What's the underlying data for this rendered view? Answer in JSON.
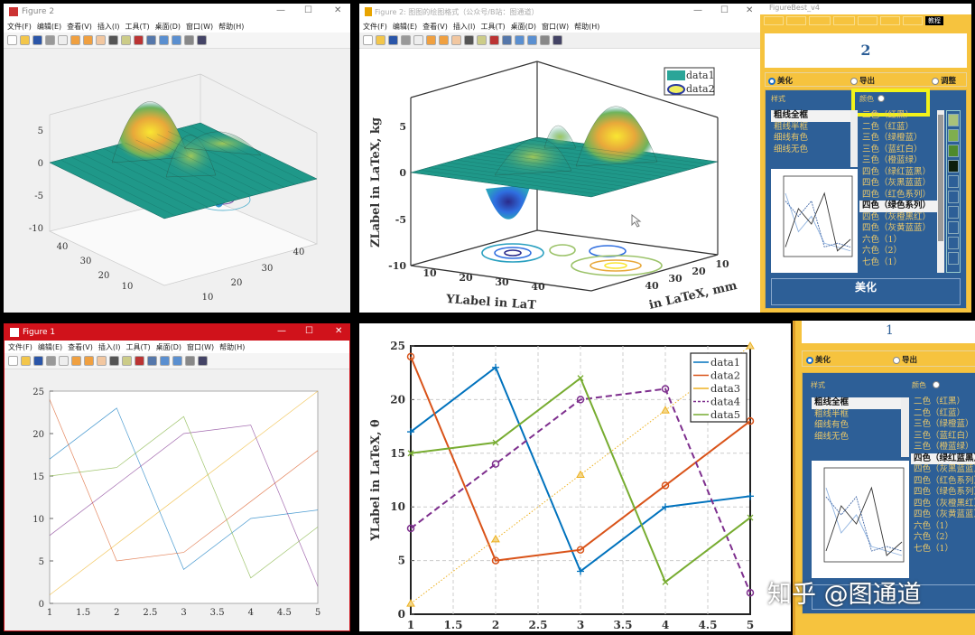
{
  "menu": [
    "文件(F)",
    "编辑(E)",
    "查看(V)",
    "插入(I)",
    "工具(T)",
    "桌面(D)",
    "窗口(W)",
    "帮助(H)"
  ],
  "windows": {
    "fig2_plain": {
      "title": "Figure 2"
    },
    "fig2_styled": {
      "title": "Figure 2: 图图的绘图格式（公众号/B站：图通道）"
    },
    "fig1_plain": {
      "title": "Figure 1"
    }
  },
  "figurebest": {
    "title": "FigureBest_v4",
    "tutorial_button": "教程",
    "figure_number_top": "2",
    "figure_number_bottom": "1",
    "modes": [
      "美化",
      "导出",
      "调整"
    ],
    "selected_mode": "美化",
    "style_label": "样式",
    "color_label": "颜色",
    "styles": [
      "粗线全框",
      "粗线半框",
      "细线有色",
      "细线无色"
    ],
    "selected_style": "粗线全框",
    "color_schemes": [
      "二色（红黑）",
      "二色（红蓝）",
      "三色（绿橙蓝）",
      "三色（蓝红白）",
      "三色（橙蓝绿）",
      "四色（绿红蓝黑）",
      "四色（灰黑蓝蓝）",
      "四色（红色系列）",
      "四色（绿色系列）",
      "四色（灰橙黑红）",
      "四色（灰黄蓝蓝）",
      "六色（1）",
      "六色（2）",
      "七色（1）"
    ],
    "selected_color_top": "四色（绿色系列）",
    "selected_color_bottom": "四色（绿红蓝黑）",
    "swatches_top": [
      "#a9c27a",
      "#7fae4e",
      "#4e8a2c",
      "#0d1f0d"
    ],
    "beautify_button": "美化",
    "highlight_color": "#f2f21a"
  },
  "watermark": "知乎 @图通道",
  "colors": {
    "blue": "#0072BD",
    "orange": "#D95319",
    "yellow": "#EDB120",
    "purple": "#7E2F8E",
    "green": "#77AC30",
    "panel_blue": "#2d5f97",
    "panel_yellow": "#f6c33e",
    "fig1_title_red": "#d0121b"
  },
  "chart_data": [
    {
      "id": "styled_line",
      "type": "line",
      "x": [
        1,
        2,
        3,
        4,
        5
      ],
      "series": [
        {
          "name": "data1",
          "values": [
            17,
            23,
            4,
            10,
            11
          ],
          "marker": "+",
          "dash": "solid"
        },
        {
          "name": "data2",
          "values": [
            24,
            5,
            6,
            12,
            18
          ],
          "marker": "o",
          "dash": "solid"
        },
        {
          "name": "data3",
          "values": [
            1,
            7,
            13,
            19,
            25
          ],
          "marker": "triangle",
          "dash": "dotted"
        },
        {
          "name": "data4",
          "values": [
            8,
            14,
            20,
            21,
            2
          ],
          "marker": "o",
          "dash": "dashed"
        },
        {
          "name": "data5",
          "values": [
            15,
            16,
            22,
            3,
            9
          ],
          "marker": "x",
          "dash": "solid"
        }
      ],
      "xticks": [
        "1",
        "1.5",
        "2",
        "2.5",
        "3",
        "3.5",
        "4",
        "4.5",
        "5"
      ],
      "yticks": [
        "0",
        "5",
        "10",
        "15",
        "20",
        "25"
      ],
      "xlim": [
        1,
        5
      ],
      "ylim": [
        0,
        25
      ],
      "ylabel": "YLabel in LaTeX, θ",
      "grid": true,
      "legend": "top-right"
    },
    {
      "id": "plain_line",
      "type": "line",
      "x": [
        1,
        2,
        3,
        4,
        5
      ],
      "series": [
        {
          "values": [
            17,
            23,
            4,
            10,
            11
          ]
        },
        {
          "values": [
            24,
            5,
            6,
            12,
            18
          ]
        },
        {
          "values": [
            1,
            7,
            13,
            19,
            25
          ]
        },
        {
          "values": [
            8,
            14,
            20,
            21,
            2
          ]
        },
        {
          "values": [
            15,
            16,
            22,
            3,
            9
          ]
        }
      ],
      "xticks": [
        "1",
        "1.5",
        "2",
        "2.5",
        "3",
        "3.5",
        "4",
        "4.5",
        "5"
      ],
      "yticks": [
        "0",
        "5",
        "10",
        "15",
        "20",
        "25"
      ],
      "xlim": [
        1,
        5
      ],
      "ylim": [
        0,
        25
      ],
      "grid": false
    },
    {
      "id": "plain_surface",
      "type": "surface",
      "zticks": [
        "5",
        "0",
        "-5",
        "-10"
      ],
      "xticks": [
        "10",
        "20",
        "30",
        "40"
      ],
      "yticks": [
        "10",
        "20",
        "30",
        "40"
      ]
    },
    {
      "id": "styled_surface",
      "type": "surface",
      "zticks": [
        "5",
        "0",
        "-5",
        "-10"
      ],
      "xticks": [
        "10",
        "20",
        "30",
        "40"
      ],
      "yticks": [
        "10",
        "20",
        "30",
        "40"
      ],
      "zlabel": "ZLabel in LaTeX, kg",
      "ylabel": "YLabel in LaT",
      "xlabel": "in LaTeX, mm",
      "legend_entries": [
        "data1",
        "data2"
      ]
    }
  ]
}
